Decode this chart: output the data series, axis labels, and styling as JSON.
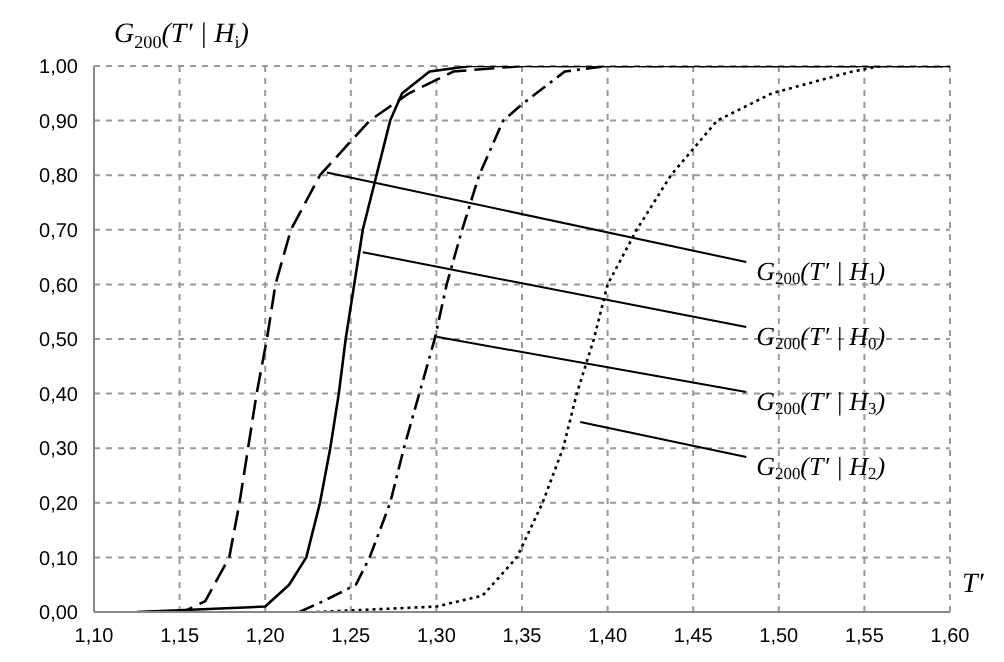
{
  "chart_data": {
    "type": "line",
    "ylabel": "G$_{200}$(T′ | H$_{i}$)",
    "xlabel": "T′",
    "xlim": [
      1.1,
      1.6
    ],
    "xticks": [
      {
        "value": 1.1,
        "label": "1,10"
      },
      {
        "value": 1.15,
        "label": "1,15"
      },
      {
        "value": 1.2,
        "label": "1,20"
      },
      {
        "value": 1.25,
        "label": "1,25"
      },
      {
        "value": 1.3,
        "label": "1,30"
      },
      {
        "value": 1.35,
        "label": "1,35"
      },
      {
        "value": 1.4,
        "label": "1,40"
      },
      {
        "value": 1.45,
        "label": "1,45"
      },
      {
        "value": 1.5,
        "label": "1,50"
      },
      {
        "value": 1.55,
        "label": "1,55"
      },
      {
        "value": 1.6,
        "label": "1,60"
      }
    ],
    "ylim": [
      0,
      1
    ],
    "yticks": [
      {
        "value": 0,
        "label": "0,00"
      },
      {
        "value": 0.1,
        "label": "0,10"
      },
      {
        "value": 0.2,
        "label": "0,20"
      },
      {
        "value": 0.3,
        "label": "0,30"
      },
      {
        "value": 0.4,
        "label": "0,40"
      },
      {
        "value": 0.5,
        "label": "0,50"
      },
      {
        "value": 0.6,
        "label": "0,60"
      },
      {
        "value": 0.7,
        "label": "0,70"
      },
      {
        "value": 0.8,
        "label": "0,80"
      },
      {
        "value": 0.9,
        "label": "0,90"
      },
      {
        "value": 1,
        "label": "1,00"
      }
    ],
    "grid": true,
    "marker": "none",
    "series": [
      {
        "color": "#000000",
        "line_style": "dashed",
        "x": [
          1.13,
          1.152,
          1.165,
          1.179,
          1.185,
          1.19,
          1.195,
          1.201,
          1.206,
          1.215,
          1.232,
          1.261,
          1.284,
          1.31,
          1.35,
          1.6
        ],
        "values": [
          0,
          0,
          0.02,
          0.1,
          0.2,
          0.3,
          0.4,
          0.5,
          0.6,
          0.7,
          0.8,
          0.9,
          0.95,
          0.99,
          1,
          1
        ]
      },
      {
        "color": "#000000",
        "line_style": "solid",
        "x": [
          1.125,
          1.2,
          1.214,
          1.224,
          1.232,
          1.238,
          1.243,
          1.247,
          1.252,
          1.257,
          1.265,
          1.273,
          1.28,
          1.296,
          1.32,
          1.6
        ],
        "values": [
          0,
          0.01,
          0.05,
          0.1,
          0.2,
          0.3,
          0.4,
          0.5,
          0.6,
          0.7,
          0.8,
          0.9,
          0.95,
          0.99,
          1,
          1
        ]
      },
      {
        "color": "#000000",
        "line_style": "dashdot",
        "x": [
          1.22,
          1.234,
          1.253,
          1.261,
          1.273,
          1.281,
          1.29,
          1.299,
          1.306,
          1.315,
          1.325,
          1.339,
          1.35,
          1.375,
          1.4,
          1.6
        ],
        "values": [
          0,
          0.02,
          0.05,
          0.1,
          0.2,
          0.3,
          0.4,
          0.5,
          0.6,
          0.7,
          0.8,
          0.9,
          0.93,
          0.99,
          1,
          1
        ]
      },
      {
        "color": "#000000",
        "line_style": "dotted",
        "x": [
          1.23,
          1.3,
          1.327,
          1.347,
          1.362,
          1.374,
          1.382,
          1.392,
          1.4,
          1.417,
          1.437,
          1.464,
          1.496,
          1.543,
          1.56,
          1.6
        ],
        "values": [
          0,
          0.01,
          0.03,
          0.1,
          0.2,
          0.3,
          0.4,
          0.5,
          0.6,
          0.7,
          0.8,
          0.9,
          0.95,
          0.99,
          1,
          1
        ]
      }
    ],
    "annotations": [
      {
        "text": "G$_{200}$(T′ | H$_{1}$)",
        "x": 1.236,
        "y": 0.805
      },
      {
        "text": "G$_{200}$(T′ | H$_{0}$)",
        "x": 1.257,
        "y": 0.659
      },
      {
        "text": "G$_{200}$(T′ | H$_{3}$)",
        "x": 1.3,
        "y": 0.504
      },
      {
        "text": "G$_{200}$(T′ | H$_{2}$)",
        "x": 1.384,
        "y": 0.348
      }
    ]
  }
}
